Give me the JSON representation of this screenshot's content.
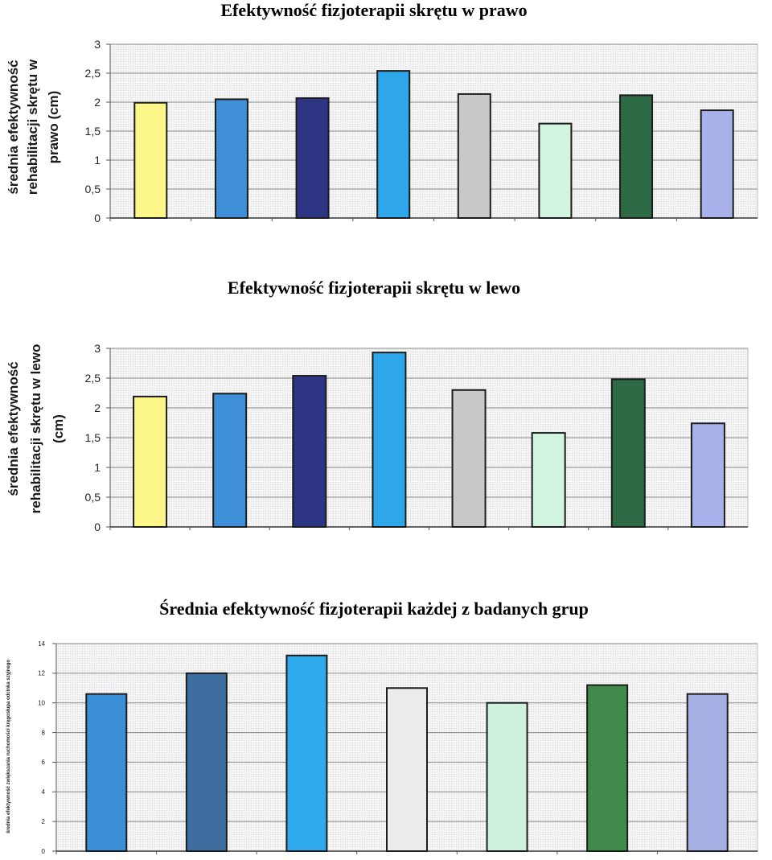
{
  "titles": {
    "chart1": "Efektywność fizjoterapii skrętu w prawo",
    "chart2": "Efektywność fizjoterapii skrętu w lewo",
    "chart3": "Średnia efektywność fizjoterapii każdej z badanych grup"
  },
  "chart_data": [
    {
      "type": "bar",
      "title": "Efektywność fizjoterapii skrętu w prawo",
      "ylabel_lines": [
        "średnia efektywność",
        "rehabilitacji skrętu w",
        "prawo (cm)"
      ],
      "xlabel": "",
      "ylim": [
        0,
        3
      ],
      "yticks": [
        "0",
        "0,5",
        "1",
        "1,5",
        "2",
        "2,5",
        "3"
      ],
      "grid": true,
      "values": [
        1.99,
        2.05,
        2.07,
        2.54,
        2.14,
        1.63,
        2.12,
        1.86
      ],
      "colors": [
        "#fdf78a",
        "#3f8fd8",
        "#2e3585",
        "#2ea6ea",
        "#c9c9c9",
        "#d2f5e2",
        "#2d6a45",
        "#a9b1ea"
      ]
    },
    {
      "type": "bar",
      "title": "Efektywność fizjoterapii skrętu w lewo",
      "ylabel_lines": [
        "średnia efektywność",
        "rehabilitacji skrętu w lewo",
        "(cm)"
      ],
      "xlabel": "",
      "ylim": [
        0,
        3
      ],
      "yticks": [
        "0",
        "0,5",
        "1",
        "1,5",
        "2",
        "2,5",
        "3"
      ],
      "grid": true,
      "values": [
        2.19,
        2.24,
        2.54,
        2.93,
        2.3,
        1.58,
        2.48,
        1.74
      ],
      "colors": [
        "#fdf78a",
        "#3f8fd8",
        "#2e3585",
        "#2ea6ea",
        "#c9c9c9",
        "#d2f5e2",
        "#2d6a45",
        "#a9b1ea"
      ]
    },
    {
      "type": "bar",
      "title": "Średnia efektywność fizjoterapii każdej z badanych grup",
      "ylabel_lines": [
        "średnia efektywność zwiększania ruchomości kręgosłupa odcinka szyjnego"
      ],
      "xlabel": "",
      "ylim": [
        0,
        14
      ],
      "yticks": [
        "0",
        "2",
        "4",
        "6",
        "8",
        "10",
        "12",
        "14"
      ],
      "grid": true,
      "values": [
        10.6,
        12.0,
        13.2,
        11.0,
        10.0,
        11.2,
        10.6
      ],
      "colors": [
        "#3a8ed6",
        "#3e6ea0",
        "#2ea9ec",
        "#ececec",
        "#cdf1dd",
        "#3f8a4a",
        "#a5b0e4"
      ]
    }
  ]
}
